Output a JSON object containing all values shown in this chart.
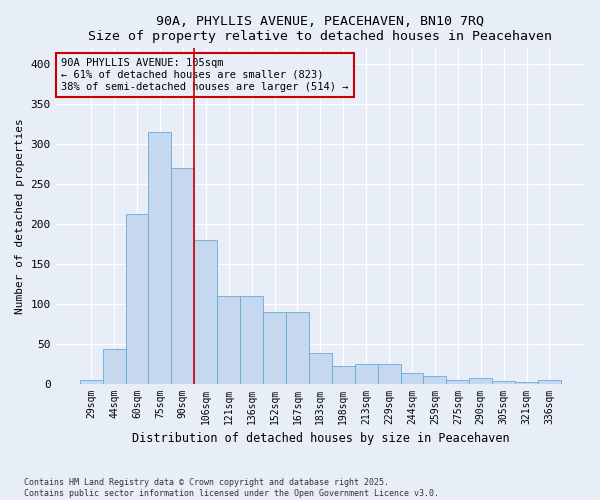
{
  "title": "90A, PHYLLIS AVENUE, PEACEHAVEN, BN10 7RQ",
  "subtitle": "Size of property relative to detached houses in Peacehaven",
  "xlabel": "Distribution of detached houses by size in Peacehaven",
  "ylabel": "Number of detached properties",
  "bar_labels": [
    "29sqm",
    "44sqm",
    "60sqm",
    "75sqm",
    "90sqm",
    "106sqm",
    "121sqm",
    "136sqm",
    "152sqm",
    "167sqm",
    "183sqm",
    "198sqm",
    "213sqm",
    "229sqm",
    "244sqm",
    "259sqm",
    "275sqm",
    "290sqm",
    "305sqm",
    "321sqm",
    "336sqm"
  ],
  "bar_values": [
    5,
    43,
    212,
    315,
    270,
    180,
    110,
    110,
    90,
    90,
    38,
    22,
    25,
    25,
    13,
    10,
    5,
    7,
    3,
    2,
    5
  ],
  "bar_color": "#c5d8f0",
  "bar_edge_color": "#6aaad4",
  "vline_x": 4.5,
  "vline_color": "#cc0000",
  "annotation_text": "90A PHYLLIS AVENUE: 105sqm\n← 61% of detached houses are smaller (823)\n38% of semi-detached houses are larger (514) →",
  "annotation_box_color": "#cc0000",
  "ylim": [
    0,
    420
  ],
  "yticks": [
    0,
    50,
    100,
    150,
    200,
    250,
    300,
    350,
    400
  ],
  "footnote1": "Contains HM Land Registry data © Crown copyright and database right 2025.",
  "footnote2": "Contains public sector information licensed under the Open Government Licence v3.0.",
  "bg_color": "#e8eef8",
  "grid_color": "#ffffff"
}
